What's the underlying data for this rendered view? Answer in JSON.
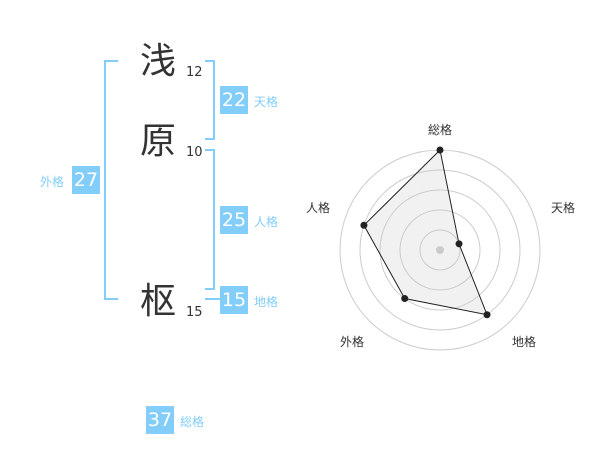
{
  "name": {
    "chars": [
      {
        "char": "浅",
        "strokes": "12"
      },
      {
        "char": "原",
        "strokes": "10"
      },
      {
        "char": "枢",
        "strokes": "15"
      }
    ]
  },
  "kakusu": {
    "tenkaku": {
      "label": "天格",
      "value": "22"
    },
    "jinkaku": {
      "label": "人格",
      "value": "25"
    },
    "chikaku": {
      "label": "地格",
      "value": "15"
    },
    "gaikaku": {
      "label": "外格",
      "value": "27"
    },
    "soukaku": {
      "label": "総格",
      "value": "37"
    }
  },
  "colors": {
    "accent": "#82cdf9",
    "text": "#333333"
  },
  "chart_data": {
    "type": "radar",
    "categories": [
      "総格",
      "天格",
      "地格",
      "外格",
      "人格"
    ],
    "values": [
      5,
      1,
      4,
      3,
      4
    ],
    "range": [
      0,
      5
    ],
    "grid": true
  }
}
